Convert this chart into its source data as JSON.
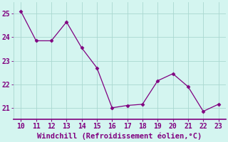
{
  "x": [
    10,
    11,
    12,
    13,
    14,
    15,
    16,
    17,
    18,
    19,
    20,
    21,
    22,
    23
  ],
  "y": [
    25.1,
    23.85,
    23.85,
    24.65,
    23.55,
    22.7,
    21.0,
    21.1,
    21.15,
    22.15,
    22.45,
    21.9,
    20.85,
    21.15
  ],
  "line_color": "#800080",
  "marker": "D",
  "marker_size": 2.5,
  "background_color": "#d4f5f0",
  "grid_color": "#aad8d0",
  "xlabel": "Windchill (Refroidissement éolien,°C)",
  "xlabel_color": "#800080",
  "tick_color": "#800080",
  "axis_line_color": "#800080",
  "xlim": [
    9.5,
    23.5
  ],
  "ylim": [
    20.5,
    25.5
  ],
  "xticks": [
    10,
    11,
    12,
    13,
    14,
    15,
    16,
    17,
    18,
    19,
    20,
    21,
    22,
    23
  ],
  "yticks": [
    21,
    22,
    23,
    24,
    25
  ],
  "xlabel_fontsize": 7.5,
  "tick_fontsize": 7.0
}
